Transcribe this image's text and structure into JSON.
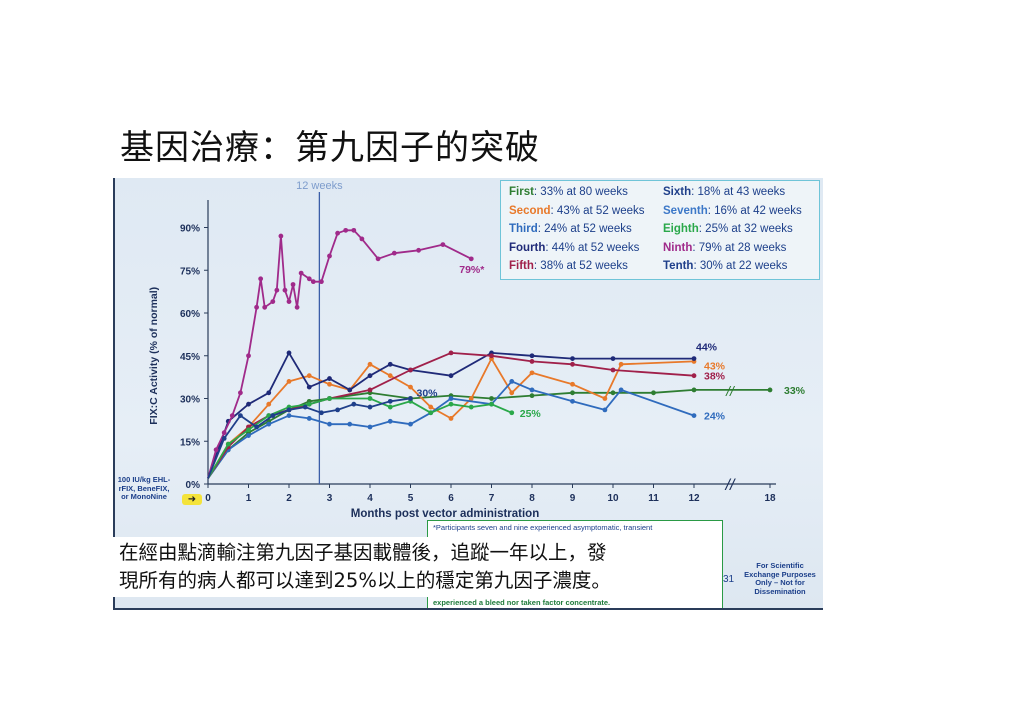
{
  "slide": {
    "title": "基因治療：第九因子的突破",
    "caption_line1": "在經由點滴輸注第九因子基因載體後，追蹤一年以上，發",
    "caption_line2": "現所有的病人都可以達到25%以上的穩定第九因子濃度。"
  },
  "annotations": {
    "week_marker": "12 weeks",
    "dose_note": "100 IU/kg EHL-rFIX, BeneFIX, or MonoNine",
    "footnote_top": "*Participants seven and nine experienced asymptomatic, transient",
    "footnote_bottom": "experienced a bleed nor taken factor concentrate.",
    "page_number": "31",
    "side_note": "For Scientific Exchange Purposes Only – Not for Dissemination"
  },
  "legend": [
    {
      "name": "First",
      "text": ": 33% at 80 weeks",
      "color": "#2e7d32"
    },
    {
      "name": "Second",
      "text": ": 43% at 52 weeks",
      "color": "#e8792a"
    },
    {
      "name": "Third",
      "text": ": 24% at 52 weeks",
      "color": "#2f6bbd"
    },
    {
      "name": "Fourth",
      "text": ": 44% at 52 weeks",
      "color": "#1f2a78"
    },
    {
      "name": "Fifth",
      "text": ": 38% at 52 weeks",
      "color": "#a0204a"
    },
    {
      "name": "Sixth",
      "text": ": 18% at 43 weeks",
      "color": "#1f3f8a"
    },
    {
      "name": "Seventh",
      "text": ": 16% at 42 weeks",
      "color": "#3c78c8"
    },
    {
      "name": "Eighth",
      "text": ": 25% at 32 weeks",
      "color": "#2aa84a"
    },
    {
      "name": "Ninth",
      "text": ": 79% at 28 weeks",
      "color": "#a02a8a"
    },
    {
      "name": "Tenth",
      "text": ": 30% at 22 weeks",
      "color": "#1f3f8a"
    }
  ],
  "chart_data": {
    "type": "line",
    "xlabel": "Months post vector administration",
    "ylabel": "FIX:C Activity (% of normal)",
    "ylim": [
      0,
      95
    ],
    "x_ticks": [
      "0",
      "1",
      "2",
      "3",
      "4",
      "5",
      "6",
      "7",
      "8",
      "9",
      "10",
      "11",
      "12",
      "18"
    ],
    "y_ticks": [
      "0%",
      "15%",
      "30%",
      "45%",
      "60%",
      "75%",
      "90%"
    ],
    "axis_break": "//",
    "vertical_marker_month": 2.75,
    "series": [
      {
        "name": "First",
        "color": "#2e7d32",
        "end_label": "33%",
        "x": [
          0,
          0.5,
          1,
          1.5,
          2,
          2.5,
          3,
          4,
          5,
          6,
          7,
          8,
          9,
          10,
          11,
          12,
          18
        ],
        "y": [
          2,
          12,
          18,
          22,
          26,
          29,
          30,
          32,
          30,
          31,
          30,
          31,
          32,
          32,
          32,
          33,
          33
        ]
      },
      {
        "name": "Second",
        "color": "#e8792a",
        "end_label": "43%",
        "x": [
          0,
          0.5,
          1,
          1.5,
          2,
          2.5,
          3,
          3.5,
          4,
          4.5,
          5,
          5.5,
          6,
          6.5,
          7,
          7.5,
          8,
          9,
          9.8,
          10.2,
          12
        ],
        "y": [
          2,
          14,
          20,
          28,
          36,
          38,
          35,
          33,
          42,
          38,
          34,
          27,
          23,
          30,
          44,
          32,
          39,
          35,
          30,
          42,
          43
        ]
      },
      {
        "name": "Third",
        "color": "#2f6bbd",
        "end_label": "24%",
        "x": [
          0,
          0.5,
          1,
          1.5,
          2,
          2.5,
          3,
          3.5,
          4,
          4.5,
          5,
          5.5,
          6,
          7,
          7.5,
          8,
          9,
          9.8,
          10.2,
          12
        ],
        "y": [
          2,
          12,
          17,
          21,
          24,
          23,
          21,
          21,
          20,
          22,
          21,
          25,
          30,
          28,
          36,
          33,
          29,
          26,
          33,
          24
        ]
      },
      {
        "name": "Fourth",
        "color": "#1f2a78",
        "end_label": "44%",
        "x": [
          0,
          0.5,
          1,
          1.5,
          2,
          2.5,
          3,
          3.5,
          4,
          4.5,
          5,
          6,
          7,
          8,
          9,
          10,
          12
        ],
        "y": [
          2,
          22,
          28,
          32,
          46,
          34,
          37,
          33,
          38,
          42,
          40,
          38,
          46,
          45,
          44,
          44,
          44
        ]
      },
      {
        "name": "Fifth",
        "color": "#a0204a",
        "end_label": "38%",
        "x": [
          0,
          0.5,
          1,
          1.5,
          2,
          2.5,
          3,
          4,
          5,
          6,
          7,
          8,
          9,
          10,
          12
        ],
        "y": [
          2,
          13,
          20,
          24,
          26,
          28,
          30,
          33,
          40,
          46,
          45,
          43,
          42,
          40,
          38
        ]
      },
      {
        "name": "Eighth",
        "color": "#2aa84a",
        "end_label": "25%",
        "x": [
          0,
          0.5,
          1,
          1.5,
          2,
          2.5,
          3,
          4,
          4.5,
          5,
          5.5,
          6,
          6.5,
          7,
          7.5
        ],
        "y": [
          2,
          14,
          19,
          24,
          27,
          28,
          30,
          30,
          27,
          29,
          25,
          28,
          27,
          28,
          25
        ]
      },
      {
        "name": "Ninth",
        "color": "#a02a8a",
        "end_label": "79%*",
        "x": [
          0,
          0.2,
          0.4,
          0.6,
          0.8,
          1.0,
          1.2,
          1.3,
          1.4,
          1.6,
          1.7,
          1.8,
          1.9,
          2.0,
          2.1,
          2.2,
          2.3,
          2.5,
          2.6,
          2.8,
          3.0,
          3.2,
          3.4,
          3.6,
          3.8,
          4.2,
          4.6,
          5.2,
          5.8,
          6.5
        ],
        "y": [
          2,
          12,
          18,
          24,
          32,
          45,
          62,
          72,
          62,
          64,
          68,
          87,
          68,
          64,
          70,
          62,
          74,
          72,
          71,
          71,
          80,
          88,
          89,
          89,
          86,
          79,
          81,
          82,
          84,
          79
        ]
      },
      {
        "name": "Tenth",
        "color": "#1f3f8a",
        "end_label": "30%",
        "x": [
          0,
          0.4,
          0.8,
          1.2,
          1.6,
          2.0,
          2.4,
          2.8,
          3.2,
          3.6,
          4.0,
          4.5,
          5.0
        ],
        "y": [
          2,
          16,
          24,
          20,
          24,
          26,
          27,
          25,
          26,
          28,
          27,
          29,
          30
        ]
      }
    ]
  }
}
